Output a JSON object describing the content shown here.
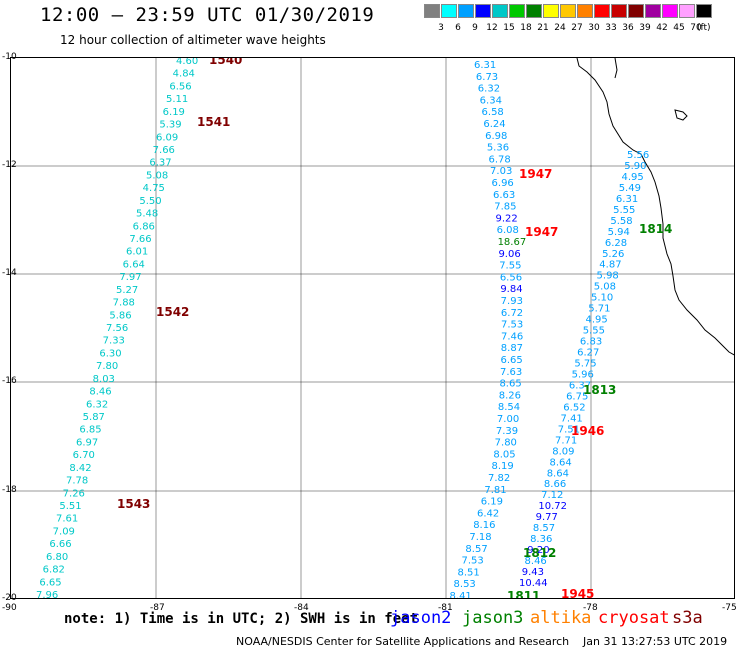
{
  "title": "12:00 – 23:59 UTC 01/30/2019",
  "subtitle": "12 hour collection of altimeter wave heights",
  "colorbar": {
    "labels": [
      "3",
      "6",
      "9",
      "12",
      "15",
      "18",
      "21",
      "24",
      "27",
      "30",
      "33",
      "36",
      "39",
      "42",
      "45",
      "70"
    ],
    "unit": "(ft)",
    "colors": [
      "#808080",
      "#00ffff",
      "#00a0ff",
      "#0000ff",
      "#00c8c8",
      "#00c800",
      "#008000",
      "#ffff00",
      "#ffc800",
      "#ff8000",
      "#ff0000",
      "#c80000",
      "#800000",
      "#a000a0",
      "#ff00ff",
      "#ffa0ff",
      "#000000"
    ]
  },
  "axes": {
    "y_labels": [
      "-10",
      "-12",
      "-14",
      "-16",
      "-18",
      "-20"
    ],
    "x_labels": [
      "-90",
      "-87",
      "-84",
      "-81",
      "-78",
      "-75"
    ]
  },
  "passes": [
    {
      "label": "1540",
      "color": "#800000"
    },
    {
      "label": "1541",
      "color": "#800000"
    },
    {
      "label": "1542",
      "color": "#800000"
    },
    {
      "label": "1543",
      "color": "#800000"
    },
    {
      "label": "1947",
      "color": "#ff0000"
    },
    {
      "label": "1947",
      "color": "#ff0000"
    },
    {
      "label": "1946",
      "color": "#ff0000"
    },
    {
      "label": "1945",
      "color": "#ff0000"
    },
    {
      "label": "1814",
      "color": "#008000"
    },
    {
      "label": "1813",
      "color": "#008000"
    },
    {
      "label": "1812",
      "color": "#008000"
    },
    {
      "label": "1811",
      "color": "#008000"
    }
  ],
  "track_a": [
    "4.60",
    "4.84",
    "6.56",
    "5.11",
    "6.19",
    "5.39",
    "6.09",
    "7.66",
    "6.37",
    "5.08",
    "4.75",
    "5.50",
    "5.48",
    "6.86",
    "7.66",
    "6.01",
    "6.64",
    "7.97",
    "5.27",
    "7.88",
    "5.86",
    "7.56",
    "7.33",
    "6.30",
    "7.80",
    "8.03",
    "8.46",
    "6.32",
    "5.87",
    "6.85",
    "6.97",
    "6.70",
    "8.42",
    "7.78",
    "7.26",
    "5.51",
    "7.61",
    "7.09",
    "6.66",
    "6.80",
    "6.82",
    "6.65",
    "7.96"
  ],
  "track_b": [
    {
      "v": "6.31",
      "c": "#00a0ff"
    },
    {
      "v": "6.73",
      "c": "#00a0ff"
    },
    {
      "v": "6.32",
      "c": "#00a0ff"
    },
    {
      "v": "6.34",
      "c": "#00a0ff"
    },
    {
      "v": "6.58",
      "c": "#00a0ff"
    },
    {
      "v": "6.24",
      "c": "#00a0ff"
    },
    {
      "v": "6.98",
      "c": "#00a0ff"
    },
    {
      "v": "5.36",
      "c": "#00a0ff"
    },
    {
      "v": "6.78",
      "c": "#00a0ff"
    },
    {
      "v": "7.03",
      "c": "#00a0ff"
    },
    {
      "v": "6.96",
      "c": "#00a0ff"
    },
    {
      "v": "6.63",
      "c": "#00a0ff"
    },
    {
      "v": "7.85",
      "c": "#00a0ff"
    },
    {
      "v": "9.22",
      "c": "#0000ff"
    },
    {
      "v": "6.08",
      "c": "#00a0ff"
    },
    {
      "v": "18.67",
      "c": "#008000"
    },
    {
      "v": "9.06",
      "c": "#0000ff"
    },
    {
      "v": "7.55",
      "c": "#00a0ff"
    },
    {
      "v": "6.56",
      "c": "#00a0ff"
    },
    {
      "v": "9.84",
      "c": "#0000ff"
    },
    {
      "v": "7.93",
      "c": "#00a0ff"
    },
    {
      "v": "6.72",
      "c": "#00a0ff"
    },
    {
      "v": "7.53",
      "c": "#00a0ff"
    },
    {
      "v": "7.46",
      "c": "#00a0ff"
    },
    {
      "v": "8.87",
      "c": "#00a0ff"
    },
    {
      "v": "6.65",
      "c": "#00a0ff"
    },
    {
      "v": "7.63",
      "c": "#00a0ff"
    },
    {
      "v": "8.65",
      "c": "#00a0ff"
    },
    {
      "v": "8.26",
      "c": "#00a0ff"
    },
    {
      "v": "8.54",
      "c": "#00a0ff"
    },
    {
      "v": "7.00",
      "c": "#00a0ff"
    },
    {
      "v": "7.39",
      "c": "#00a0ff"
    },
    {
      "v": "7.80",
      "c": "#00a0ff"
    },
    {
      "v": "8.05",
      "c": "#00a0ff"
    },
    {
      "v": "8.19",
      "c": "#00a0ff"
    },
    {
      "v": "7.82",
      "c": "#00a0ff"
    },
    {
      "v": "7.81",
      "c": "#00a0ff"
    },
    {
      "v": "6.19",
      "c": "#00a0ff"
    },
    {
      "v": "6.42",
      "c": "#00a0ff"
    },
    {
      "v": "8.16",
      "c": "#00a0ff"
    },
    {
      "v": "7.18",
      "c": "#00a0ff"
    },
    {
      "v": "8.57",
      "c": "#00a0ff"
    },
    {
      "v": "7.53",
      "c": "#00a0ff"
    },
    {
      "v": "8.51",
      "c": "#00a0ff"
    },
    {
      "v": "8.53",
      "c": "#00a0ff"
    },
    {
      "v": "8.41",
      "c": "#00a0ff"
    }
  ],
  "track_c": [
    {
      "v": "5.56",
      "c": "#00a0ff"
    },
    {
      "v": "5.90",
      "c": "#00a0ff"
    },
    {
      "v": "4.95",
      "c": "#00a0ff"
    },
    {
      "v": "5.49",
      "c": "#00a0ff"
    },
    {
      "v": "6.31",
      "c": "#00a0ff"
    },
    {
      "v": "5.55",
      "c": "#00a0ff"
    },
    {
      "v": "5.58",
      "c": "#00a0ff"
    },
    {
      "v": "5.94",
      "c": "#00a0ff"
    },
    {
      "v": "6.28",
      "c": "#00a0ff"
    },
    {
      "v": "5.26",
      "c": "#00a0ff"
    },
    {
      "v": "4.87",
      "c": "#00a0ff"
    },
    {
      "v": "5.98",
      "c": "#00a0ff"
    },
    {
      "v": "5.08",
      "c": "#00a0ff"
    },
    {
      "v": "5.10",
      "c": "#00a0ff"
    },
    {
      "v": "5.71",
      "c": "#00a0ff"
    },
    {
      "v": "4.95",
      "c": "#00a0ff"
    },
    {
      "v": "5.55",
      "c": "#00a0ff"
    },
    {
      "v": "6.83",
      "c": "#00a0ff"
    },
    {
      "v": "6.27",
      "c": "#00a0ff"
    },
    {
      "v": "5.75",
      "c": "#00a0ff"
    },
    {
      "v": "5.96",
      "c": "#00a0ff"
    },
    {
      "v": "6.37",
      "c": "#00a0ff"
    },
    {
      "v": "6.75",
      "c": "#00a0ff"
    },
    {
      "v": "6.52",
      "c": "#00a0ff"
    },
    {
      "v": "7.41",
      "c": "#00a0ff"
    },
    {
      "v": "7.51",
      "c": "#00a0ff"
    },
    {
      "v": "7.71",
      "c": "#00a0ff"
    },
    {
      "v": "8.09",
      "c": "#00a0ff"
    },
    {
      "v": "8.64",
      "c": "#00a0ff"
    },
    {
      "v": "8.64",
      "c": "#00a0ff"
    },
    {
      "v": "8.66",
      "c": "#00a0ff"
    },
    {
      "v": "7.12",
      "c": "#00a0ff"
    },
    {
      "v": "10.72",
      "c": "#0000ff"
    },
    {
      "v": "9.77",
      "c": "#0000ff"
    },
    {
      "v": "8.57",
      "c": "#00a0ff"
    },
    {
      "v": "8.36",
      "c": "#00a0ff"
    },
    {
      "v": "9.20",
      "c": "#0000ff"
    },
    {
      "v": "8.46",
      "c": "#00a0ff"
    },
    {
      "v": "9.43",
      "c": "#0000ff"
    },
    {
      "v": "10.44",
      "c": "#0000ff"
    }
  ],
  "note": "note: 1) Time is in UTC; 2) SWH is in feet",
  "satellites": [
    {
      "name": "jason2",
      "color": "#0000ff"
    },
    {
      "name": "jason3",
      "color": "#008000"
    },
    {
      "name": "altika",
      "color": "#ff8000"
    },
    {
      "name": "cryosat",
      "color": "#ff0000"
    },
    {
      "name": "s3a",
      "color": "#800000"
    }
  ],
  "credit": "NOAA/NESDIS Center for Satellite Applications and Research",
  "timestamp": "Jan 31 13:27:53 UTC 2019"
}
